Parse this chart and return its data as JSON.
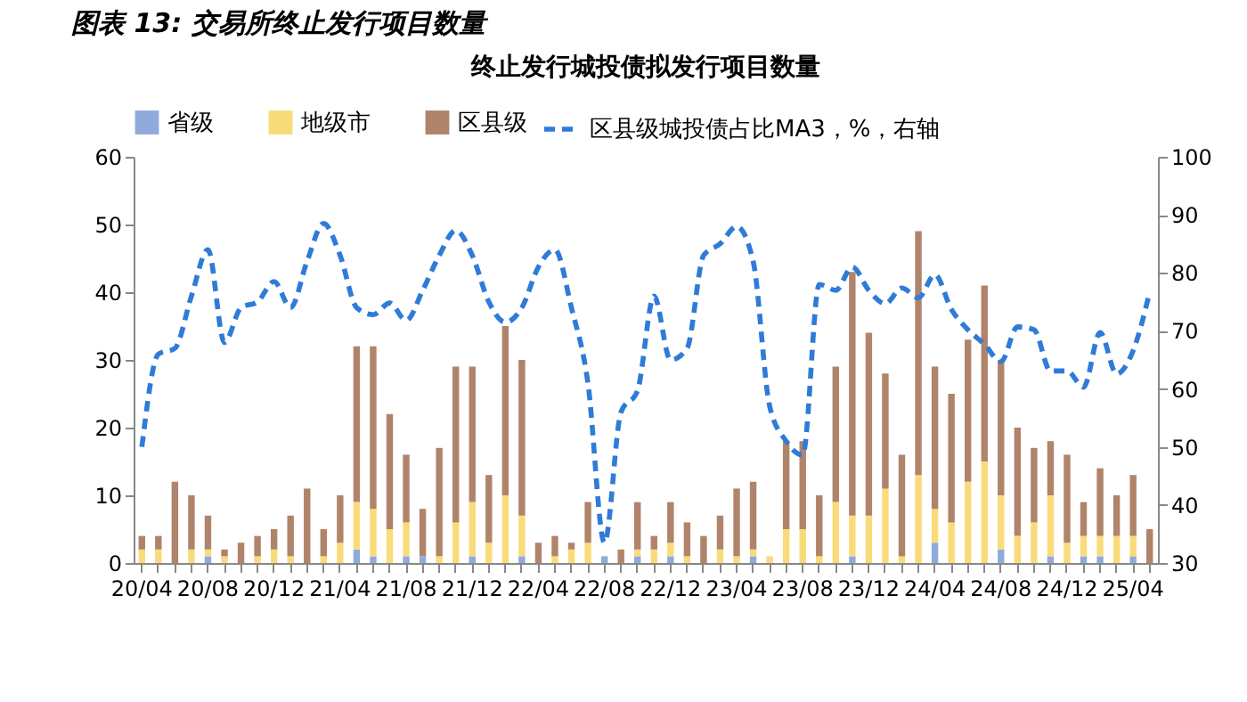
{
  "chart_data": {
    "type": "bar",
    "title": "图表 13: 交易所终止发行项目数量",
    "subtitle": "终止发行城投债拟发行项目数量",
    "categories": [
      "20/04",
      null,
      null,
      null,
      "20/08",
      null,
      null,
      null,
      "20/12",
      null,
      null,
      null,
      "21/04",
      null,
      null,
      null,
      "21/08",
      null,
      null,
      null,
      "21/12",
      null,
      null,
      null,
      "22/04",
      null,
      null,
      null,
      "22/08",
      null,
      null,
      null,
      "22/12",
      null,
      null,
      null,
      "23/04",
      null,
      null,
      null,
      "23/08",
      null,
      null,
      null,
      "23/12",
      null,
      null,
      null,
      "24/04",
      null,
      null,
      null,
      "24/08",
      null,
      null,
      null,
      "24/12",
      null,
      null,
      null,
      "25/04",
      null
    ],
    "stacked": true,
    "legend": "top",
    "ylim": [
      0,
      60
    ],
    "yticks": [
      0,
      10,
      20,
      30,
      40,
      50,
      60
    ],
    "y2lim": [
      30,
      100
    ],
    "y2ticks": [
      30,
      40,
      50,
      60,
      70,
      80,
      90,
      100
    ],
    "series": [
      {
        "name": "省级",
        "color": "#8faadc",
        "values": [
          0,
          0,
          0,
          0,
          1,
          0,
          0,
          0,
          0,
          0,
          0,
          0,
          0,
          2,
          1,
          0,
          1,
          1,
          0,
          0,
          1,
          0,
          0,
          1,
          0,
          0,
          0,
          0,
          1,
          0,
          1,
          0,
          1,
          0,
          0,
          0,
          0,
          1,
          0,
          0,
          0,
          0,
          0,
          1,
          0,
          0,
          0,
          0,
          3,
          0,
          0,
          0,
          2,
          0,
          0,
          1,
          0,
          1,
          1,
          0,
          1,
          0
        ]
      },
      {
        "name": "地级市",
        "color": "#f9dc7a",
        "values": [
          2,
          2,
          0,
          2,
          1,
          1,
          0,
          1,
          2,
          1,
          0,
          1,
          3,
          7,
          7,
          5,
          5,
          0,
          1,
          6,
          8,
          3,
          10,
          6,
          0,
          1,
          2,
          3,
          0,
          0,
          1,
          2,
          2,
          1,
          0,
          2,
          1,
          1,
          1,
          5,
          5,
          1,
          9,
          6,
          7,
          11,
          1,
          13,
          5,
          6,
          12,
          15,
          8,
          4,
          6,
          9,
          3,
          3,
          3,
          4,
          3,
          0
        ]
      },
      {
        "name": "区县级",
        "color": "#b0846a",
        "values": [
          2,
          2,
          12,
          8,
          5,
          1,
          3,
          3,
          3,
          6,
          11,
          4,
          7,
          23,
          24,
          17,
          10,
          7,
          16,
          23,
          20,
          10,
          25,
          23,
          3,
          3,
          1,
          6,
          0,
          2,
          7,
          2,
          6,
          5,
          4,
          5,
          10,
          10,
          0,
          13,
          13,
          9,
          20,
          36,
          27,
          17,
          15,
          36,
          21,
          19,
          21,
          26,
          20,
          16,
          11,
          8,
          13,
          5,
          10,
          6,
          9,
          5
        ]
      },
      {
        "name": "区县级城投债占比MA3，%，右轴",
        "type": "line",
        "axis": "y2",
        "color": "#2f7bd8",
        "line_style": "dashed",
        "marker": "none",
        "values": [
          50,
          66,
          67,
          76,
          84,
          68,
          74,
          75,
          78.5,
          74,
          82,
          88.5,
          83,
          74,
          72.8,
          74.8,
          71.8,
          77,
          83,
          87.3,
          83,
          75,
          71.5,
          74,
          81,
          84,
          74,
          61,
          33.5,
          56,
          59.7,
          76,
          65,
          67,
          83,
          85,
          88,
          82,
          57,
          51,
          48.6,
          78,
          77,
          81,
          77,
          74.7,
          77.4,
          75.7,
          79.7,
          73.7,
          70.2,
          67.7,
          64.7,
          70.7,
          70.2,
          63.1,
          63.1,
          60.3,
          69.7,
          62.6,
          66.6,
          76.7
        ]
      }
    ]
  }
}
